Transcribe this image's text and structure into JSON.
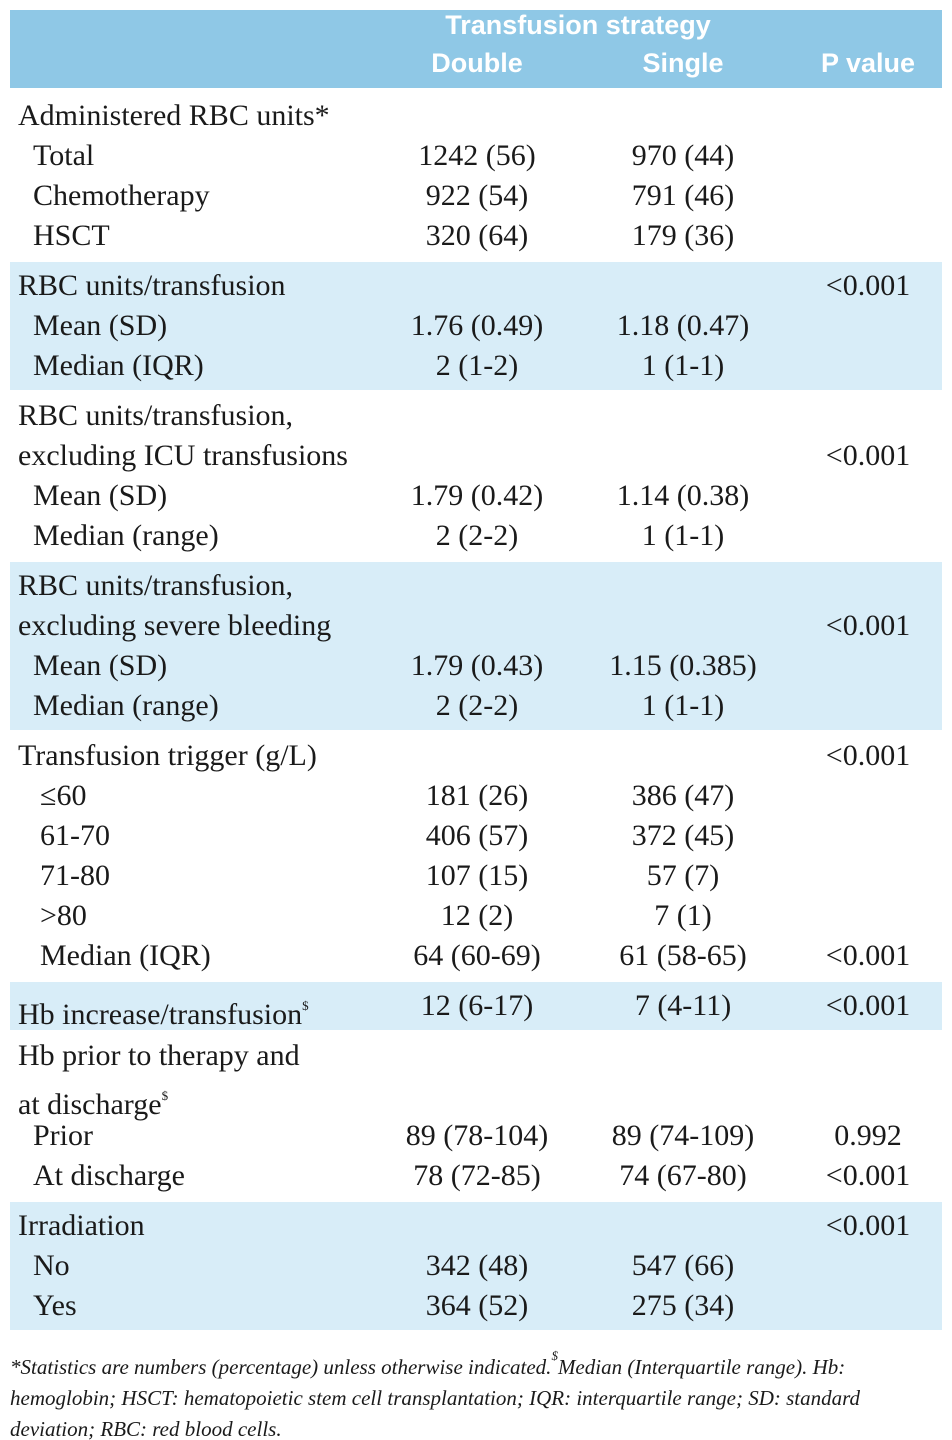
{
  "header": {
    "group": "Transfusion strategy",
    "columns": [
      "Double",
      "Single",
      "P value"
    ]
  },
  "sections": [
    {
      "heading": {
        "lines": [
          "Administered RBC units*"
        ]
      },
      "rows": [
        {
          "label": "Total",
          "double": "1242 (56)",
          "single": "970 (44)"
        },
        {
          "label": "Chemotherapy",
          "double": "922 (54)",
          "single": "791 (46)"
        },
        {
          "label": "HSCT",
          "double": "320 (64)",
          "single": "179 (36)"
        }
      ]
    },
    {
      "heading": {
        "lines": [
          "RBC units/transfusion"
        ],
        "p": "<0.001"
      },
      "rows": [
        {
          "label": "Mean (SD)",
          "double": "1.76 (0.49)",
          "single": "1.18 (0.47)"
        },
        {
          "label": "Median (IQR)",
          "double": "2 (1-2)",
          "single": "1 (1-1)"
        }
      ]
    },
    {
      "heading": {
        "lines": [
          "RBC units/transfusion,",
          "excluding ICU transfusions"
        ],
        "p": "<0.001"
      },
      "rows": [
        {
          "label": "Mean (SD)",
          "double": "1.79 (0.42)",
          "single": "1.14 (0.38)"
        },
        {
          "label": "Median (range)",
          "double": "2 (2-2)",
          "single": "1 (1-1)"
        }
      ]
    },
    {
      "heading": {
        "lines": [
          "RBC units/transfusion,",
          "excluding severe bleeding"
        ],
        "p": "<0.001"
      },
      "rows": [
        {
          "label": "Mean (SD)",
          "double": "1.79 (0.43)",
          "single": "1.15 (0.385)"
        },
        {
          "label": "Median (range)",
          "double": "2 (2-2)",
          "single": "1 (1-1)"
        }
      ]
    },
    {
      "heading": {
        "lines": [
          "Transfusion trigger (g/L)"
        ],
        "p": "<0.001"
      },
      "rows": [
        {
          "label": "≤60",
          "double": "181 (26)",
          "single": "386 (47)"
        },
        {
          "label": "61-70",
          "double": "406 (57)",
          "single": "372 (45)"
        },
        {
          "label": "71-80",
          "double": "107 (15)",
          "single": "57 (7)"
        },
        {
          "label": ">80",
          "double": "12 (2)",
          "single": "7 (1)"
        },
        {
          "label": "Median (IQR)",
          "double": "64 (60-69)",
          "single": "61 (58-65)",
          "p": "<0.001"
        }
      ]
    },
    {
      "heading": {
        "lines": [
          "Hb increase/transfusion"
        ],
        "sup": "$",
        "double": "12 (6-17)",
        "single": "7 (4-11)",
        "p": "<0.001"
      },
      "rows": []
    },
    {
      "heading": {
        "lines": [
          "Hb prior to therapy and",
          "at discharge"
        ],
        "sup": "$"
      },
      "rows": [
        {
          "label": "Prior",
          "double": "89 (78-104)",
          "single": "89 (74-109)",
          "p": "0.992"
        },
        {
          "label": "At discharge",
          "double": "78 (72-85)",
          "single": "74 (67-80)",
          "p": "<0.001"
        }
      ]
    },
    {
      "heading": {
        "lines": [
          "Irradiation"
        ],
        "p": "<0.001"
      },
      "rows": [
        {
          "label": "No",
          "double": "342 (48)",
          "single": "547 (66)"
        },
        {
          "label": "Yes",
          "double": "364 (52)",
          "single": "275 (34)"
        }
      ]
    }
  ],
  "footnote": {
    "text1": "*Statistics are numbers (percentage) unless otherwise indicated.",
    "sup": "$",
    "text2": "Median (Interquartile range). Hb: hemoglobin; HSCT: hematopoietic stem cell transplantation; IQR: interquartile range; SD: standard deviation; RBC: red blood cells."
  }
}
